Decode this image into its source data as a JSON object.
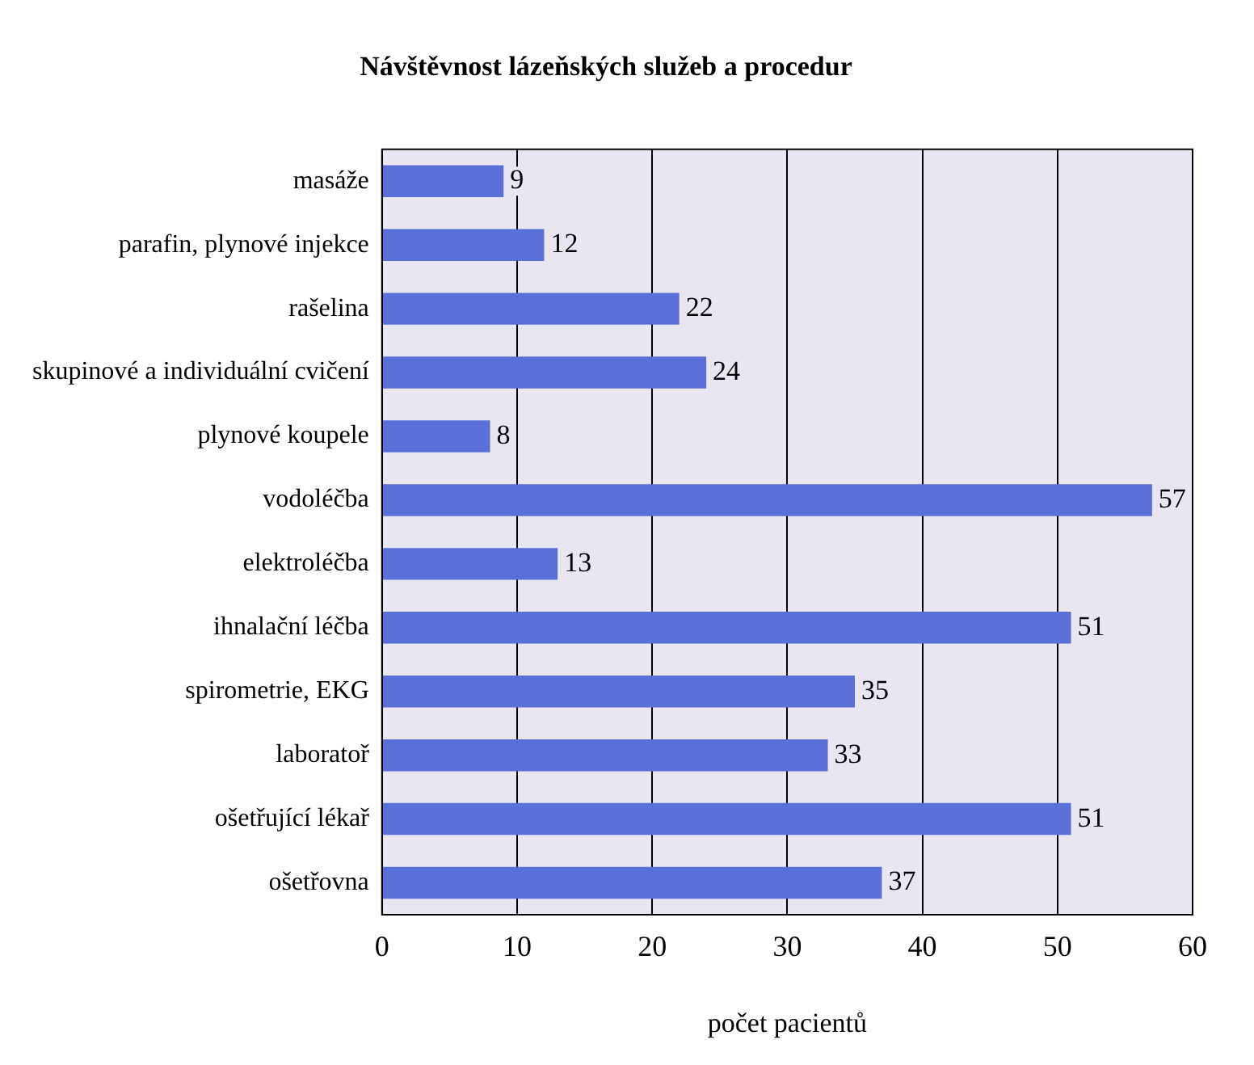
{
  "chart_data": {
    "type": "bar",
    "orientation": "horizontal",
    "title": "Návštěvnost lázeňských služeb a procedur",
    "xlabel": "počet pacientů",
    "categories": [
      "masáže",
      "parafin, plynové injekce",
      "rašelina",
      "skupinové a individuální cvičení",
      "plynové koupele",
      "vodoléčba",
      "elektroléčba",
      "ihnalační léčba",
      "spirometrie, EKG",
      "laboratoř",
      "ošetřující lékař",
      "ošetřovna"
    ],
    "values": [
      9,
      12,
      22,
      24,
      8,
      57,
      13,
      51,
      35,
      33,
      51,
      37
    ],
    "color": "#5a6fd8",
    "xlim": [
      0,
      60
    ],
    "xticks": [
      0,
      10,
      20,
      30,
      40,
      50,
      60
    ],
    "grid": "x",
    "data_labels": true,
    "legend": false
  }
}
